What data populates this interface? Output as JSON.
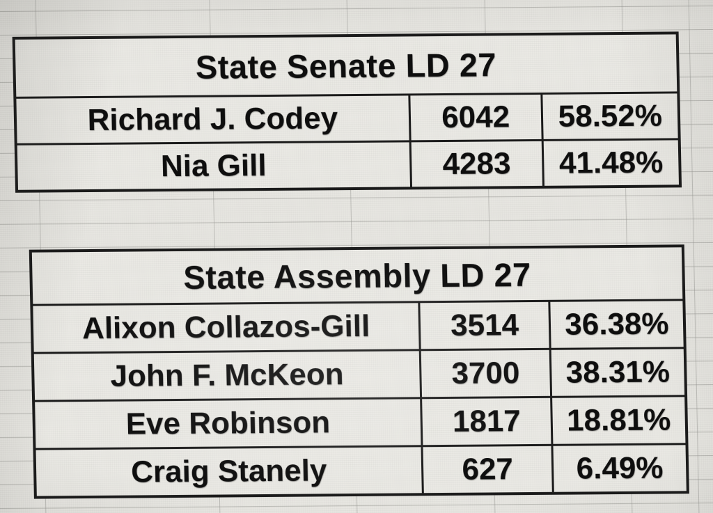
{
  "colors": {
    "screen_background": "#e7e6e1",
    "cell_background": "#eae9e4",
    "table_border": "#1b1b1b",
    "text": "#0e0e0e",
    "gridline": "#94948f"
  },
  "tables": [
    {
      "title": "State Senate LD 27",
      "rows": [
        {
          "name": "Richard J. Codey",
          "votes": "6042",
          "pct": "58.52%"
        },
        {
          "name": "Nia Gill",
          "votes": "4283",
          "pct": "41.48%"
        }
      ]
    },
    {
      "title": "State Assembly LD 27",
      "rows": [
        {
          "name": "Alixon Collazos-Gill",
          "votes": "3514",
          "pct": "36.38%"
        },
        {
          "name": "John F. McKeon",
          "votes": "3700",
          "pct": "38.31%"
        },
        {
          "name": "Eve Robinson",
          "votes": "1817",
          "pct": "18.81%"
        },
        {
          "name": "Craig Stanely",
          "votes": "627",
          "pct": "6.49%"
        }
      ]
    }
  ]
}
